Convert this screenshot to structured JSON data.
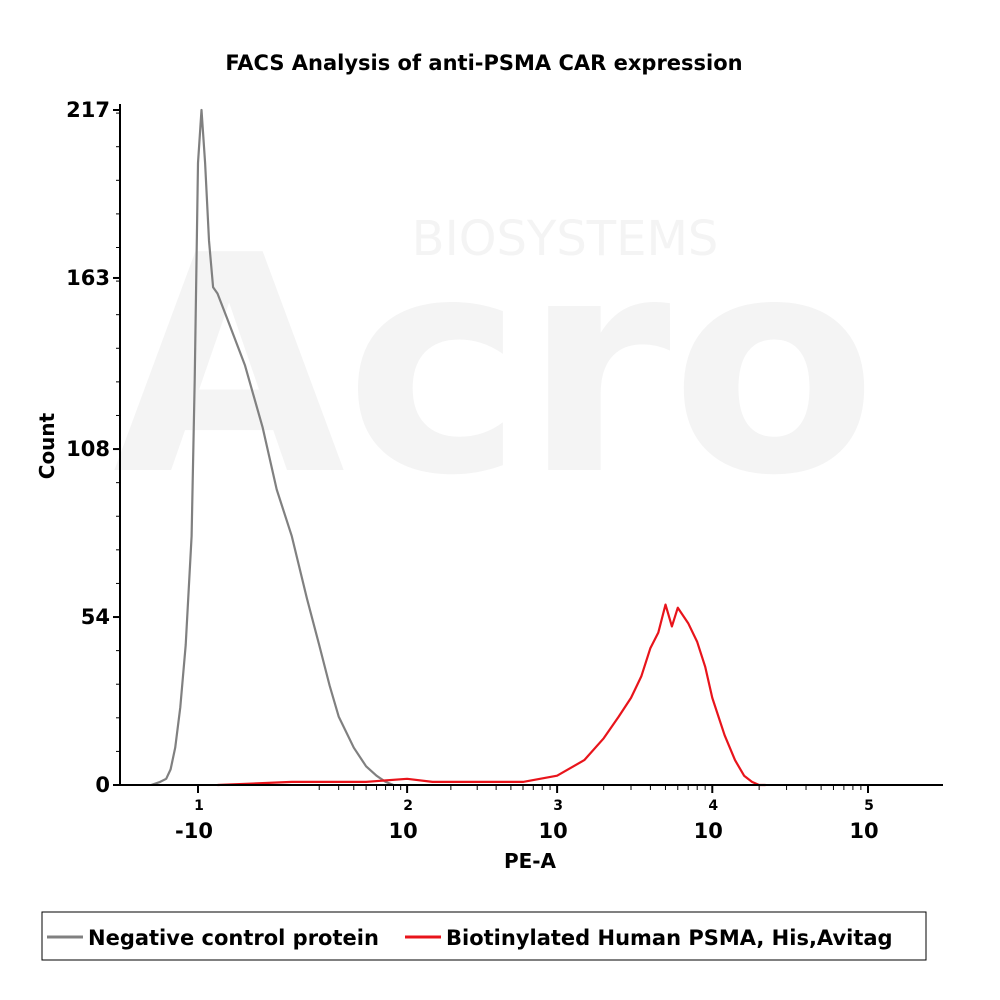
{
  "chart_data": {
    "type": "line",
    "title": "FACS Analysis of anti-PSMA CAR expression",
    "xlabel": "PE-A",
    "ylabel": "Count",
    "x_scale": "biexponential",
    "ylim": [
      0,
      217
    ],
    "y_ticks": [
      {
        "value": 0,
        "label": "0"
      },
      {
        "value": 54,
        "label": "54"
      },
      {
        "value": 108,
        "label": "108"
      },
      {
        "value": 163,
        "label": "163"
      },
      {
        "value": 217,
        "label": "217"
      }
    ],
    "x_ticks": [
      {
        "value": -10,
        "base": "-10",
        "exp": "1"
      },
      {
        "value": 100,
        "base": "10",
        "exp": "2"
      },
      {
        "value": 1000,
        "base": "10",
        "exp": "3"
      },
      {
        "value": 10000,
        "base": "10",
        "exp": "4"
      },
      {
        "value": 100000,
        "base": "10",
        "exp": "5"
      }
    ],
    "series": [
      {
        "name": "Negative control protein",
        "color": "#808080",
        "x": [
          -30,
          -25,
          -22,
          -20,
          -18,
          -16,
          -14,
          -12,
          -11,
          -10,
          -9,
          -8,
          -7,
          -6,
          -5,
          -3,
          0,
          3,
          6,
          10,
          15,
          20,
          25,
          30,
          40,
          50,
          60,
          70,
          80
        ],
        "y": [
          0,
          1,
          2,
          5,
          12,
          25,
          45,
          80,
          130,
          200,
          217,
          200,
          175,
          160,
          158,
          150,
          135,
          115,
          95,
          80,
          60,
          45,
          32,
          22,
          12,
          6,
          3,
          1,
          0
        ]
      },
      {
        "name": "Biotinylated Human PSMA, His,Avitag",
        "color": "#e8141b",
        "x": [
          -5,
          10,
          50,
          100,
          150,
          300,
          600,
          1000,
          1500,
          2000,
          2500,
          3000,
          3500,
          4000,
          4500,
          5000,
          5500,
          6000,
          7000,
          8000,
          9000,
          10000,
          12000,
          14000,
          16000,
          18000,
          20000,
          22000
        ],
        "y": [
          0,
          1,
          1,
          2,
          1,
          1,
          1,
          3,
          8,
          15,
          22,
          28,
          35,
          44,
          49,
          58,
          51,
          57,
          52,
          46,
          38,
          28,
          16,
          8,
          3,
          1,
          0,
          0
        ]
      }
    ],
    "legend_position": "bottom"
  },
  "watermark": {
    "brand": "Acro",
    "sub": "BIOSYSTEMS"
  }
}
